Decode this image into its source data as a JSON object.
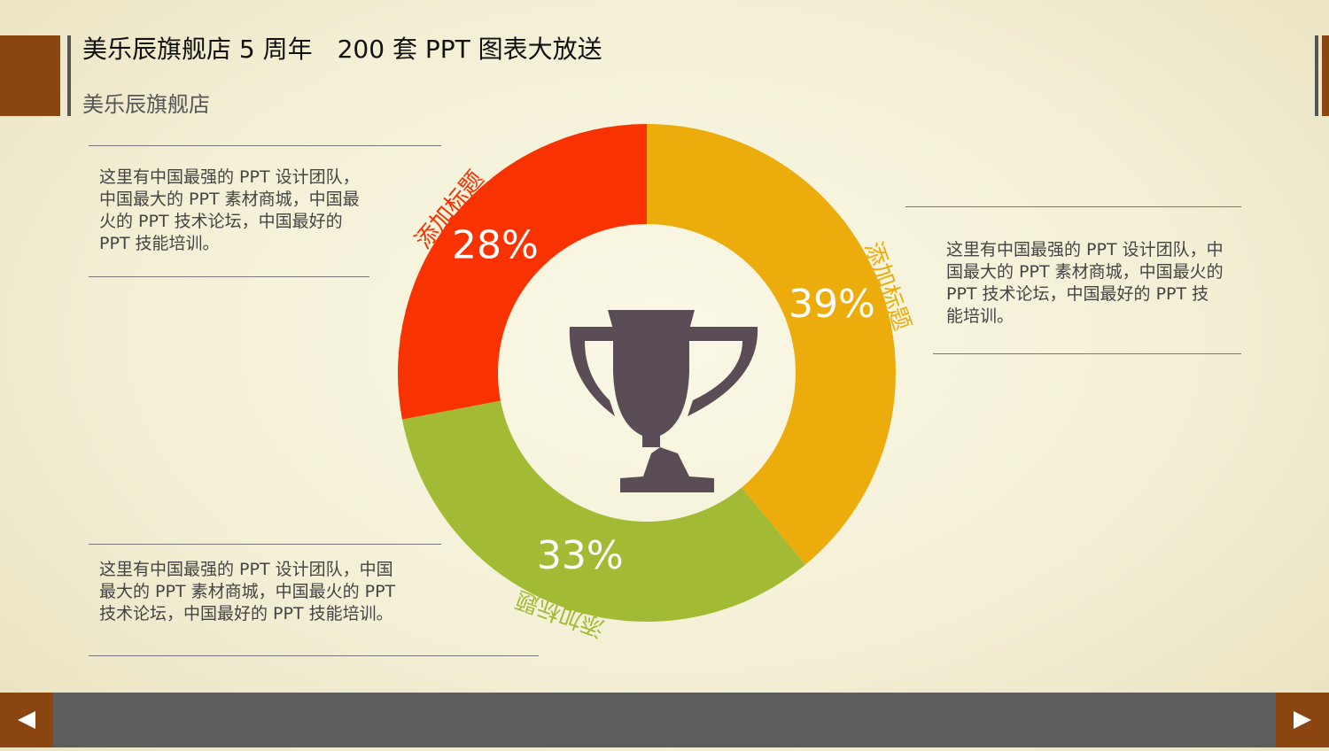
{
  "header": {
    "title": "美乐辰旗舰店 5 周年　200 套 PPT 图表大放送",
    "subtitle": "美乐辰旗舰店"
  },
  "notes": [
    "这里有中国最强的 PPT 设计团队，中国最大的 PPT 素材商城，中国最火的 PPT 技术论坛，中国最好的 PPT 技能培训。",
    "这里有中国最强的 PPT 设计团队，中国最大的 PPT 素材商城，中国最火的 PPT 技术论坛，中国最好的 PPT 技能培训。",
    "这里有中国最强的 PPT 设计团队，中国最大的 PPT 素材商城，中国最火的 PPT 技术论坛，中国最好的 PPT 技能培训。"
  ],
  "chart_data": {
    "type": "pie",
    "categories": [
      "添加标题",
      "添加标题",
      "添加标题"
    ],
    "values": [
      39,
      33,
      28
    ],
    "value_labels": [
      "39%",
      "33%",
      "28%"
    ],
    "colors": [
      "#ecac0c",
      "#a3bb34",
      "#f83200"
    ]
  }
}
